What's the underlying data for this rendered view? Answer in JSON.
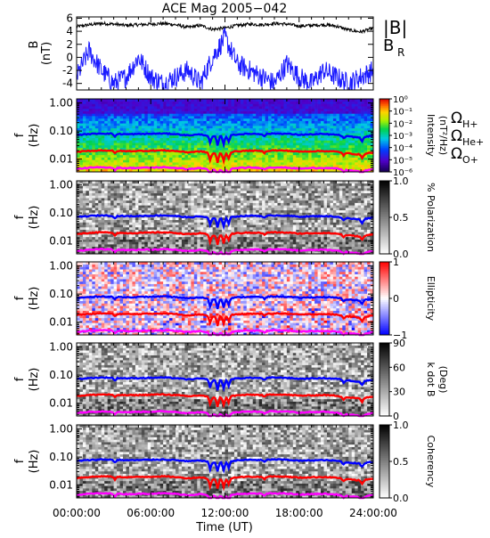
{
  "chart_data": {
    "title": "ACE Mag 2005−042",
    "type": "multi-panel",
    "colors": {
      "B_total": "#000000",
      "B_R": "#1a1aff",
      "H_plus": "#0000ff",
      "He_plus": "#ff0000",
      "O_plus": "#ff00ff"
    },
    "time_axis": {
      "label": "Time (UT)",
      "ticks": [
        "00:00:00",
        "06:00:00",
        "12:00:00",
        "18:00:00",
        "24:00:00"
      ],
      "range_hours": [
        0,
        24
      ]
    },
    "frequency_axis": {
      "ylabel_line1": "f",
      "ylabel_line2": "(Hz)",
      "scale": "log",
      "ticks": [
        "1.00",
        "0.10",
        "0.01"
      ],
      "range": [
        0.0035,
        1.4
      ]
    },
    "panels": [
      {
        "type": "line",
        "ylabel_line1": "B",
        "ylabel_line2": "(nT)",
        "ylim": [
          -5,
          6.2
        ],
        "yticks": [
          "6",
          "4",
          "2",
          "0",
          "-2",
          "-4"
        ],
        "series": [
          {
            "name": "|B|",
            "color": "#000000",
            "x": [
              0,
              1,
              2,
              3,
              4,
              5,
              6,
              7,
              8,
              9,
              10,
              11,
              12,
              13,
              14,
              15,
              16,
              17,
              18,
              19,
              20,
              21,
              22,
              23,
              24
            ],
            "values": [
              4.7,
              5.0,
              5.2,
              5.1,
              4.9,
              5.0,
              5.1,
              5.2,
              5.0,
              4.6,
              4.9,
              4.3,
              4.5,
              4.9,
              5.1,
              5.0,
              5.2,
              5.1,
              4.8,
              4.9,
              5.0,
              4.8,
              4.2,
              3.9,
              4.5
            ]
          },
          {
            "name": "B",
            "subscript": "R",
            "color": "#1a1aff",
            "x": [
              0,
              1,
              2,
              3,
              4,
              5,
              6,
              7,
              8,
              9,
              10,
              11,
              12,
              13,
              14,
              15,
              16,
              17,
              18,
              19,
              20,
              21,
              22,
              23,
              24
            ],
            "values": [
              -3,
              1,
              -2,
              -4,
              -3,
              0,
              -3,
              -4,
              -3,
              -2,
              -4,
              0,
              3,
              -1,
              -2,
              -3,
              -4,
              -1,
              -3,
              -4,
              -2,
              -3,
              -4,
              -3,
              -2
            ]
          }
        ]
      },
      {
        "type": "heatmap",
        "colorbar": "rainbow",
        "colorbar_label": "Intensity",
        "colorbar_label2": "(nT²/Hz)",
        "colorbar_ticks": [
          "10⁰",
          "10⁻¹",
          "10⁻²",
          "10⁻³",
          "10⁻⁴",
          "10⁻⁵",
          "10⁻⁶"
        ],
        "legend": [
          {
            "symbol": "Ω",
            "sub": "H+",
            "color": "#0000ff"
          },
          {
            "symbol": "Ω",
            "sub": "He+",
            "color": "#ff0000"
          },
          {
            "symbol": "Ω",
            "sub": "O+",
            "color": "#ff00ff"
          }
        ]
      },
      {
        "type": "heatmap",
        "colorbar": "gray",
        "colorbar_label": "% Polarization",
        "colorbar_ticks": [
          "1.0",
          "0.5",
          "0.0"
        ]
      },
      {
        "type": "heatmap",
        "colorbar": "bwr",
        "colorbar_label": "Ellipticity",
        "colorbar_ticks": [
          "1",
          "0",
          "−1"
        ]
      },
      {
        "type": "heatmap",
        "colorbar": "gray",
        "colorbar_label": "k dot B",
        "colorbar_label2": "(Deg)",
        "colorbar_ticks": [
          "90",
          "60",
          "30",
          "0"
        ]
      },
      {
        "type": "heatmap",
        "colorbar": "gray",
        "colorbar_label": "Coherency",
        "colorbar_ticks": [
          "1.0",
          "0.5",
          "0.0"
        ]
      }
    ],
    "gyrofrequency_lines": {
      "x": [
        0,
        1,
        2,
        3,
        4,
        5,
        6,
        7,
        8,
        9,
        10,
        11,
        12,
        13,
        14,
        15,
        16,
        17,
        18,
        19,
        20,
        21,
        22,
        23,
        24
      ],
      "H_plus": [
        0.072,
        0.078,
        0.082,
        0.08,
        0.077,
        0.078,
        0.08,
        0.082,
        0.078,
        0.07,
        0.076,
        0.065,
        0.068,
        0.076,
        0.08,
        0.078,
        0.082,
        0.08,
        0.074,
        0.076,
        0.078,
        0.074,
        0.064,
        0.058,
        0.07
      ],
      "He_plus": [
        0.018,
        0.0195,
        0.0205,
        0.02,
        0.0192,
        0.0195,
        0.02,
        0.0205,
        0.0195,
        0.0175,
        0.019,
        0.016,
        0.017,
        0.019,
        0.02,
        0.0195,
        0.0205,
        0.02,
        0.0185,
        0.019,
        0.0195,
        0.0185,
        0.016,
        0.0145,
        0.0175
      ],
      "O_plus": [
        0.0045,
        0.0049,
        0.0051,
        0.005,
        0.0048,
        0.0049,
        0.005,
        0.0051,
        0.0049,
        0.0044,
        0.0048,
        0.0041,
        0.0042,
        0.0048,
        0.005,
        0.0049,
        0.0051,
        0.005,
        0.0046,
        0.0048,
        0.0049,
        0.0046,
        0.004,
        0.0036,
        0.0044
      ]
    }
  }
}
